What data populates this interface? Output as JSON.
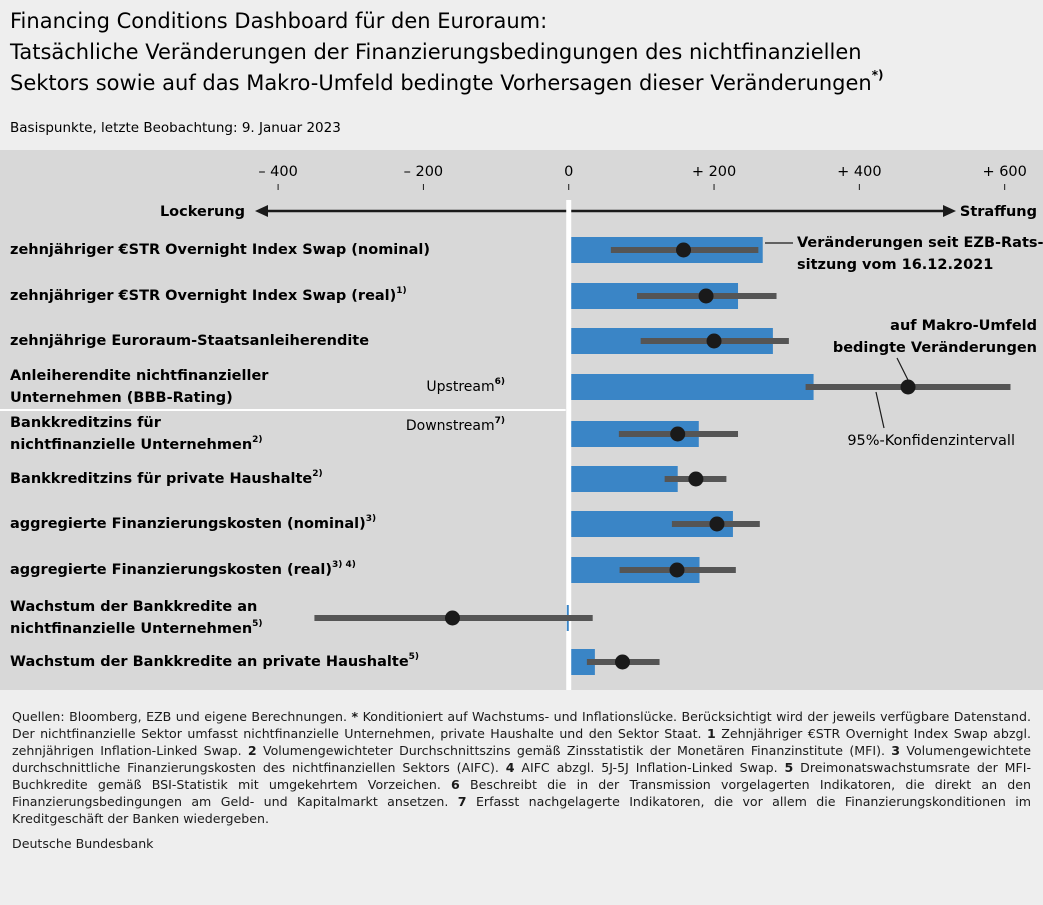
{
  "chart_data": {
    "type": "bar-interval",
    "title": [
      "Financing Conditions Dashboard für den Euroraum:",
      "Tatsächliche Veränderungen der Finanzierungsbedingungen des nichtfinanziellen",
      "Sektors sowie auf das Makro-Umfeld bedingte Vorhersagen dieser Veränderungen"
    ],
    "title_note": "*)",
    "subtitle": "Basispunkte, letzte Beobachtung: 9. Januar 2023",
    "axis_left_label": "Lockerung",
    "axis_right_label": "Straffung",
    "xlim": [
      -780,
      650
    ],
    "xticks": [
      {
        "value": -400,
        "label": "– 400"
      },
      {
        "value": -200,
        "label": "– 200"
      },
      0,
      {
        "value": 200,
        "label": "+ 200"
      },
      {
        "value": 400,
        "label": "+ 400"
      },
      {
        "value": 600,
        "label": "+ 600"
      }
    ],
    "categories": [
      [
        "zehnjähriger €STR Overnight Index Swap (nominal)"
      ],
      [
        "zehnjähriger €STR Overnight Index Swap (real)"
      ],
      [
        "zehnjährige Euroraum-Staatsanleiherendite"
      ],
      [
        "Anleiherendite nichtfinanzieller",
        "Unternehmen (BBB-Rating)"
      ],
      [
        "Bankkreditzins für",
        "nichtfinanzielle Unternehmen"
      ],
      [
        "Bankkreditzins für private Haushalte"
      ],
      [
        "aggregierte Finanzierungskosten (nominal)"
      ],
      [
        "aggregierte Finanzierungskosten (real)"
      ],
      [
        "Wachstum der Bankkredite an",
        "nichtfinanzielle Unternehmen"
      ],
      [
        "Wachstum der Bankkredite an private Haushalte"
      ]
    ],
    "category_notes": [
      null,
      "1)",
      null,
      null,
      "2)",
      "2)",
      "3)",
      "3) 4)",
      "5)",
      "5)"
    ],
    "groups": [
      {
        "label": "Upstream",
        "note": "6)"
      },
      {
        "label": "Downstream",
        "note": "7)"
      }
    ],
    "series": [
      {
        "color": "#3a85c6",
        "values": [
          267,
          233,
          281,
          337,
          179,
          150,
          226,
          180,
          -2,
          36
        ]
      },
      {
        "color": "#1a1a1a",
        "values": [
          158,
          189,
          200,
          467,
          150,
          175,
          204,
          149,
          -160,
          74
        ],
        "ci": [
          [
            58,
            261
          ],
          [
            94,
            286
          ],
          [
            99,
            303
          ],
          [
            326,
            608
          ],
          [
            69,
            233
          ],
          [
            132,
            217
          ],
          [
            142,
            263
          ],
          [
            70,
            230
          ],
          [
            -350,
            33
          ],
          [
            25,
            125
          ]
        ],
        "ci_color": "#555555"
      }
    ],
    "annotations": [
      [
        "Veränderungen seit EZB-Rats-",
        "sitzung vom 16.12.2021"
      ],
      [
        "auf Makro-Umfeld",
        "bedingte Veränderungen"
      ],
      [
        "95%-Konfidenzintervall"
      ]
    ],
    "notes": [
      {
        "t": "Quellen: Bloomberg, EZB und eigene Berechnungen. "
      },
      {
        "b": "*",
        "t": " Konditioniert auf Wachstums- und Inflationslücke. Berücksichtigt wird der jeweils verfügbare Datenstand. Der nichtfinanzielle Sektor umfasst nichtfinanzielle Unternehmen, private Haushalte und den Sektor Staat. "
      },
      {
        "b": "1",
        "t": " Zehnjähriger €STR Overnight Index Swap abzgl. zehnjährigen Inflation-Linked Swap. "
      },
      {
        "b": "2",
        "t": " Volumengewichteter Durchschnittszins gemäß Zinsstatistik der Monetären Finanzinstitute (MFI). "
      },
      {
        "b": "3",
        "t": " Volumengewichtete durchschnittliche Finanzierungskosten des nichtfinanziellen Sektors (AIFC). "
      },
      {
        "b": "4",
        "t": " AIFC abzgl. 5J-5J Inflation-Linked Swap. "
      },
      {
        "b": "5",
        "t": " Dreimonatswachstumsrate der MFI-Buchkredite gemäß BSI-Statistik mit umgekehrtem Vorzeichen. "
      },
      {
        "b": "6",
        "t": " Beschreibt die in der Transmission vorgelagerten Indikatoren, die direkt an den Finanzierungsbedingungen am Geld- und Kapitalmarkt ansetzen. "
      },
      {
        "b": "7",
        "t": " Erfasst nachgelagerte Indikatoren, die vor allem die Finanzierungskonditionen im Kreditgeschäft der Banken wiedergeben."
      }
    ],
    "source": "Deutsche Bundesbank"
  }
}
